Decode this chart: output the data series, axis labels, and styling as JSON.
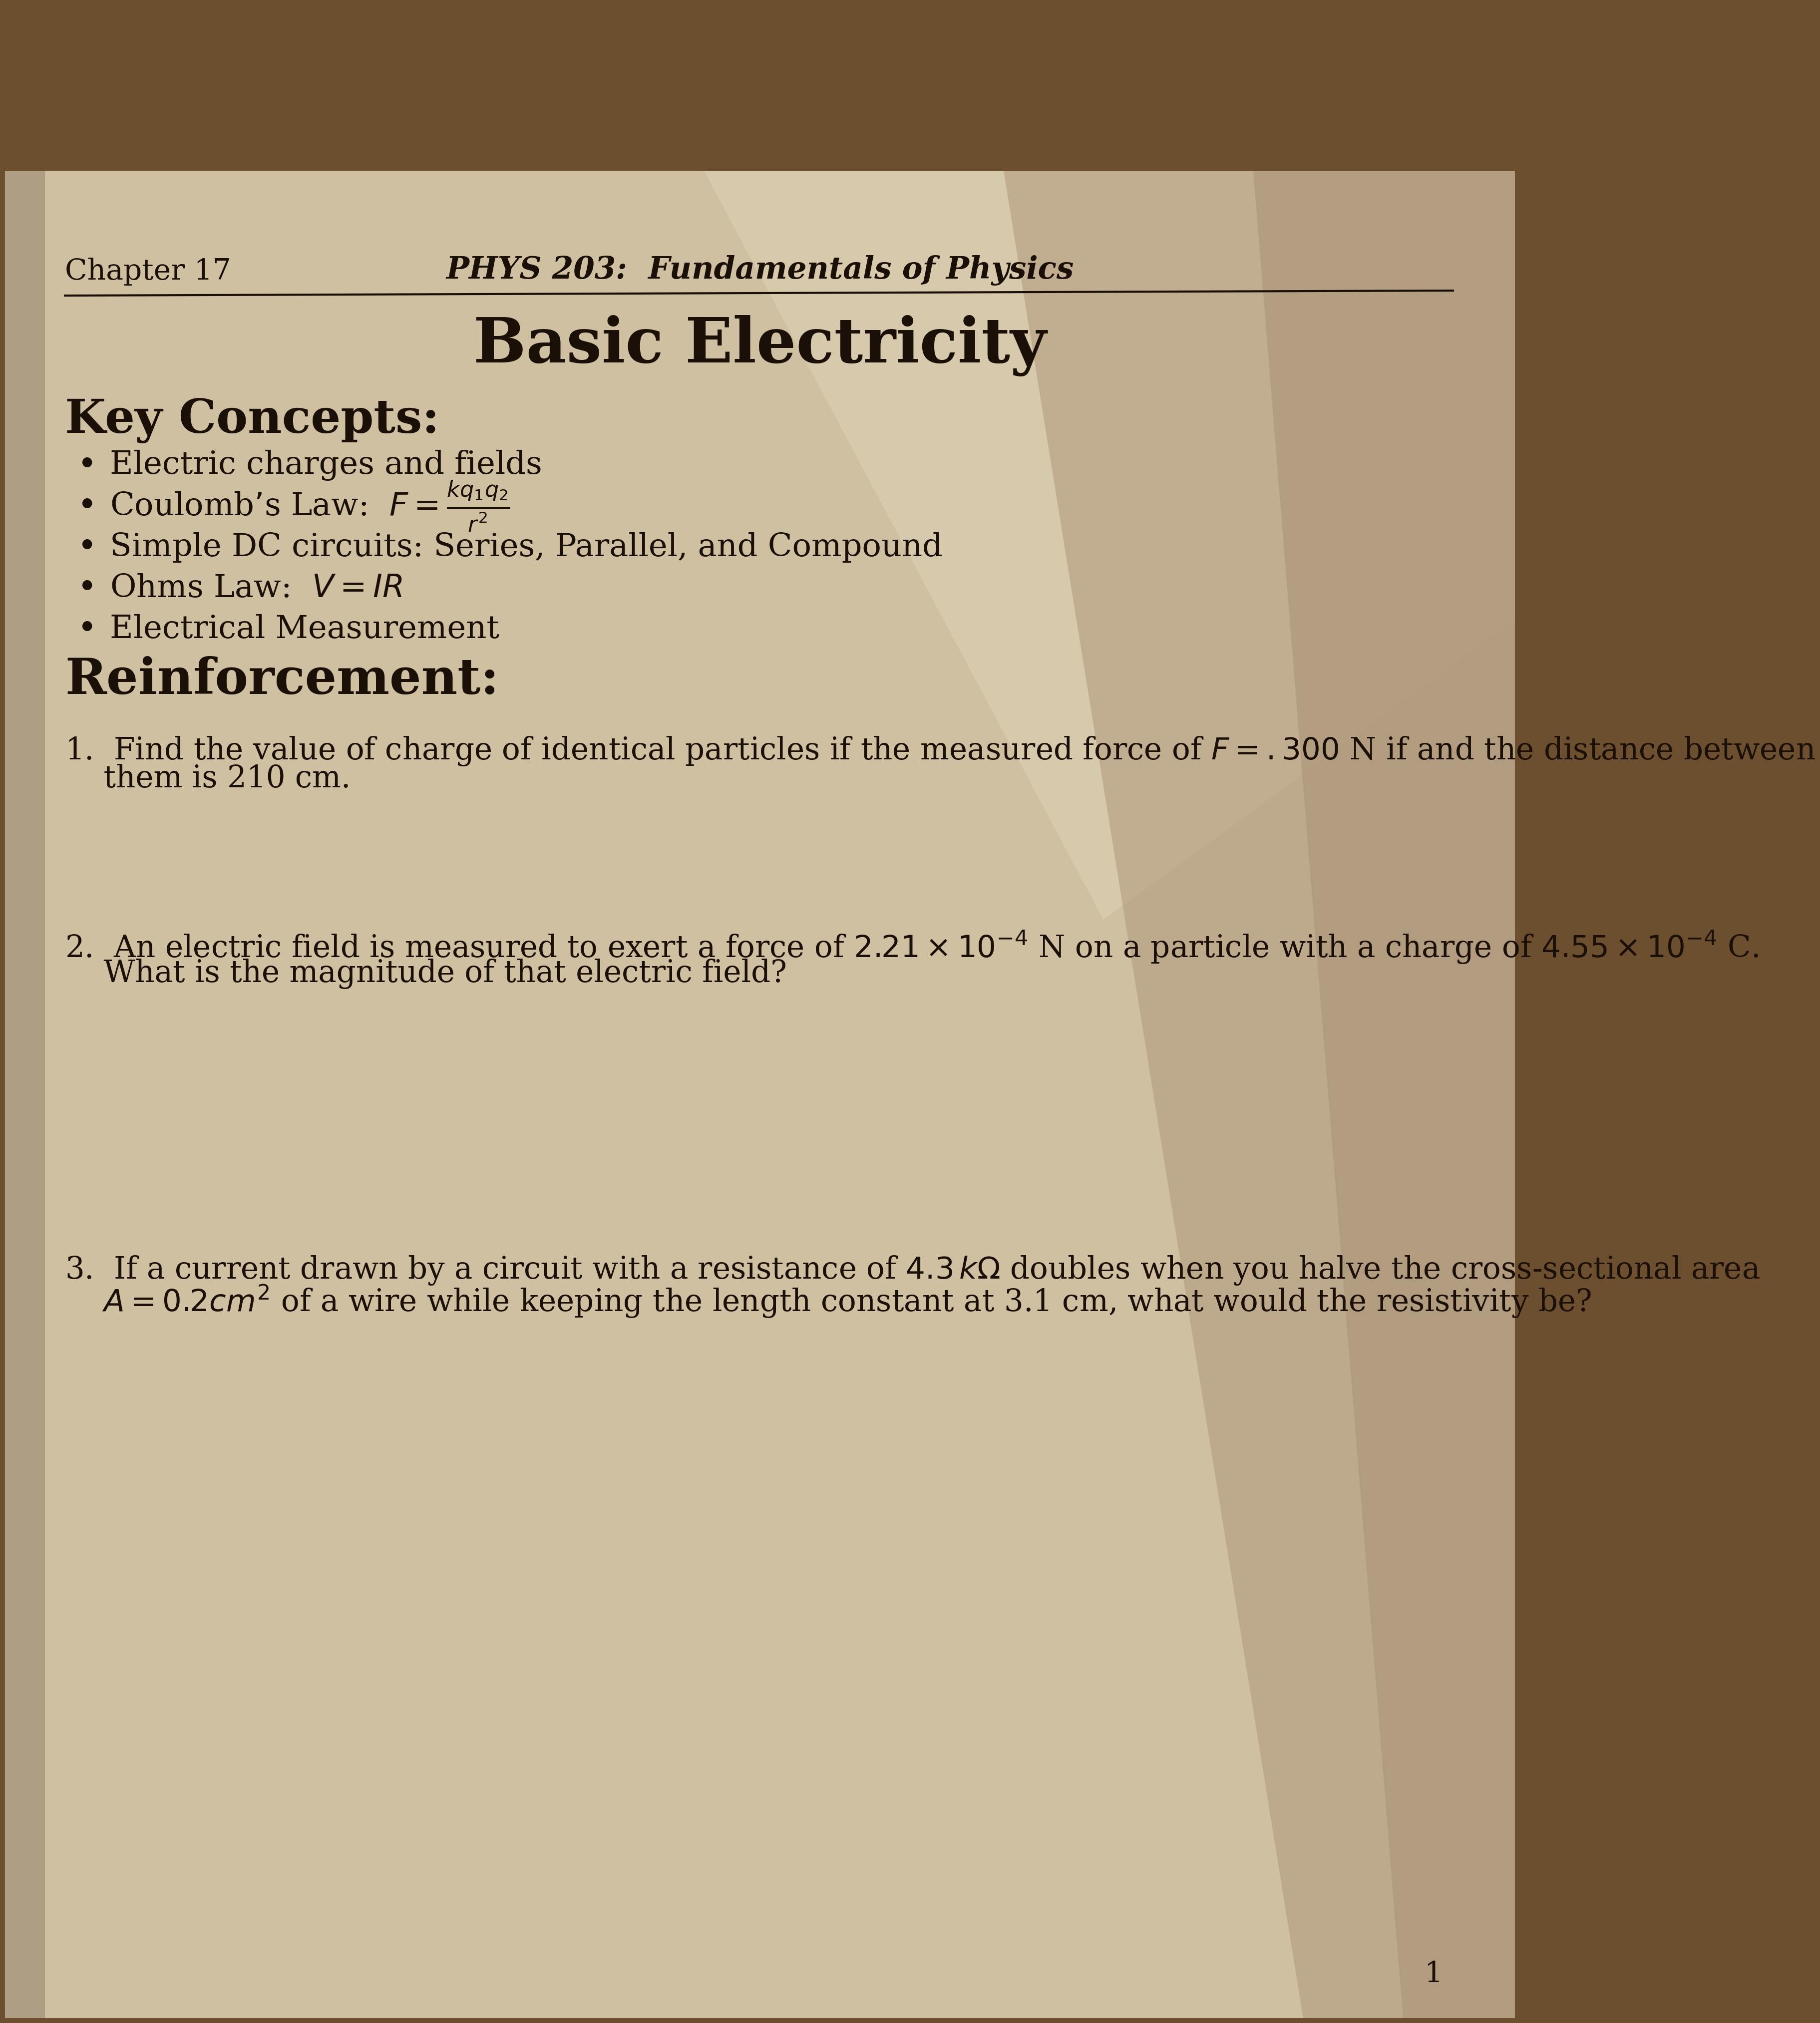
{
  "wood_color": "#6b4f2e",
  "paper_color": "#cfc0a0",
  "paper_light_color": "#d8cbb0",
  "text_color": "#1a1008",
  "chapter_label": "Chapter 17",
  "header_title": "PHYS 203:  Fundamentals of Physics",
  "main_title": "Basic Electricity",
  "section1_title": "Key Concepts:",
  "bullet1": "Electric charges and fields",
  "bullet2_pre": "Coulomb’s Law:  $F = \\frac{kq_1q_2}{r^2}$",
  "bullet3": "Simple DC circuits: Series, Parallel, and Compound",
  "bullet4": "Ohms Law:  $V = IR$",
  "bullet5": "Electrical Measurement",
  "section2_title": "Reinforcement:",
  "q1_line1": "1.  Find the value of charge of identical particles if the measured force of $F = .300$ N if and the distance between",
  "q1_line2": "    them is 210 cm.",
  "q2_line1": "2.  An electric field is measured to exert a force of $2.21 \\times 10^{-4}$ N on a particle with a charge of $4.55 \\times 10^{-4}$ C.",
  "q2_line2": "    What is the magnitude of that electric field?",
  "q3_line1": "3.  If a current drawn by a circuit with a resistance of $4.3\\,k\\Omega$ doubles when you halve the cross-sectional area",
  "q3_line2": "    $A = 0.2cm^2$ of a wire while keeping the length constant at 3.1 cm, what would the resistivity be?"
}
